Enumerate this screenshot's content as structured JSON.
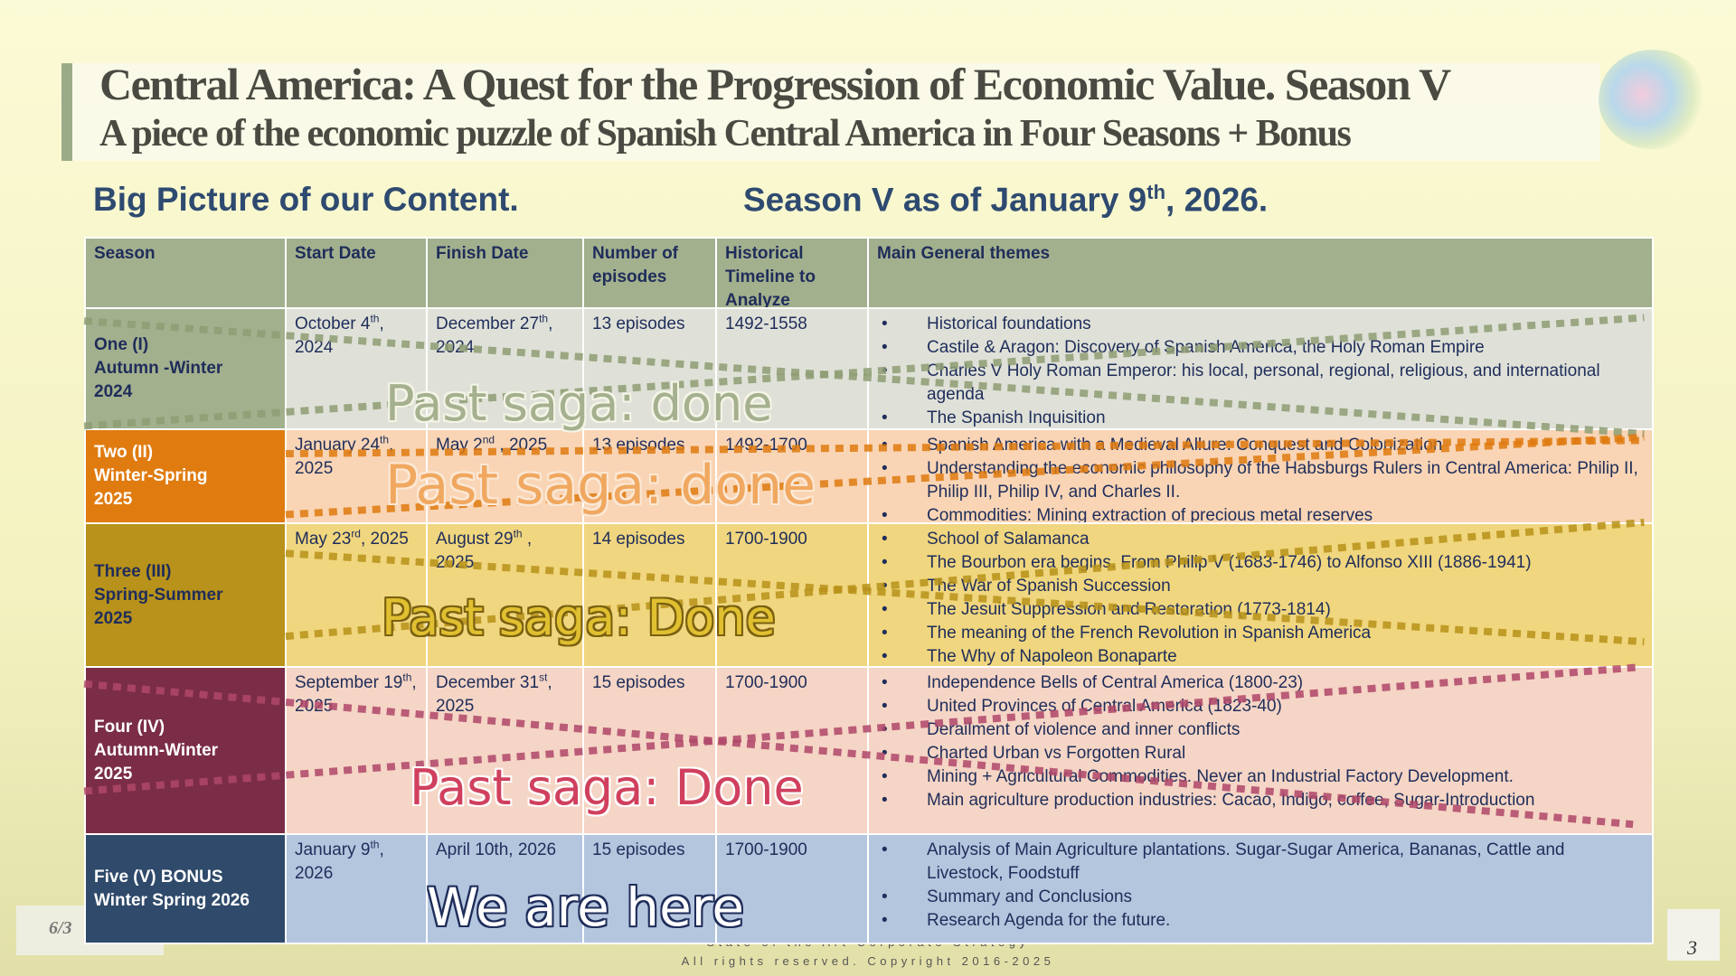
{
  "header": {
    "title": "Central America:  A Quest for the Progression of Economic Value. Season V",
    "subtitle": "A piece of the economic puzzle of Spanish Central America in Four Seasons + Bonus"
  },
  "headings": {
    "left": "Big Picture of our Content.",
    "right": [
      "Season V as of January 9",
      "th",
      ", 2026."
    ]
  },
  "table": {
    "columns": [
      "Season",
      "Start Date",
      "Finish Date",
      "Number of episodes",
      "Historical Timeline to Analyze",
      "Main General themes"
    ],
    "rows": [
      {
        "season": [
          "One  (I)",
          "Autumn -Winter",
          "2024"
        ],
        "start": [
          "October 4",
          "th",
          ", 2024"
        ],
        "finish": [
          "December 27",
          "th",
          ", 2024"
        ],
        "episodes": "13 episodes",
        "timeline": "1492-1558",
        "themes": [
          "Historical foundations",
          "Castile & Aragon: Discovery of Spanish America, the Holy Roman Empire",
          "Charles V Holy Roman Emperor: his local, personal, regional, religious, and international agenda",
          "The Spanish Inquisition"
        ],
        "overlay": "Past saga: done"
      },
      {
        "season": [
          "Two  (II)",
          "Winter-Spring",
          "2025"
        ],
        "start": [
          "January 24",
          "th",
          ", 2025"
        ],
        "finish": [
          "May 2",
          "nd",
          " , 2025"
        ],
        "episodes": "13 episodes",
        "timeline": "1492-1700",
        "themes": [
          "Spanish America with a Medieval Allure: Conquest and Colonization",
          "Understanding the economic philosophy of the Habsburgs Rulers in Central America: Philip II, Philip III, Philip IV, and Charles II.",
          "Commodities: Mining extraction of precious metal reserves"
        ],
        "overlay": "Past saga: done"
      },
      {
        "season": [
          "Three  (III)",
          "Spring-Summer",
          "2025"
        ],
        "start": [
          "May 23",
          "rd",
          ", 2025"
        ],
        "finish": [
          "August 29",
          "th",
          " , 2025"
        ],
        "episodes": "14 episodes",
        "timeline": "1700-1900",
        "themes": [
          "School of Salamanca",
          "The Bourbon era begins. From Philip V (1683-1746) to Alfonso XIII (1886-1941)",
          "The War of Spanish Succession",
          "The Jesuit Suppression and Restoration (1773-1814)",
          "The meaning of the French Revolution in Spanish America",
          "The Why of Napoleon Bonaparte"
        ],
        "overlay": "Past saga: Done"
      },
      {
        "season": [
          "Four (IV)",
          "Autumn-Winter",
          "2025"
        ],
        "start": [
          "September 19",
          "th",
          ", 2025"
        ],
        "finish": [
          "December 31",
          "st",
          ", 2025"
        ],
        "episodes": "15 episodes",
        "timeline": "1700-1900",
        "themes": [
          "Independence Bells of Central America (1800-23)",
          "United Provinces of Central America (1823-40)",
          "Derailment of violence and inner conflicts",
          "Charted Urban vs Forgotten Rural",
          "Mining + Agricultural Commodities. Never an Industrial Factory Development.",
          "Main agriculture production industries: Cacao, Indigo, coffee, Sugar-Introduction"
        ],
        "overlay": "Past saga: Done"
      },
      {
        "season": [
          "Five (V) BONUS",
          "Winter Spring 2026"
        ],
        "start": [
          "January 9",
          "th",
          ", 2026"
        ],
        "finish": [
          "April 10th, 2026"
        ],
        "episodes": "15 episodes",
        "timeline": "1700-1900",
        "themes": [
          "Analysis of Main Agriculture plantations. Sugar-Sugar America, Bananas, Cattle and Livestock, Foodstuff",
          "Summary and Conclusions",
          "Research Agenda for the future."
        ],
        "overlay": "We are here"
      }
    ]
  },
  "footer": {
    "left": "6/3",
    "line1": "State of the Art Corporate Strategy",
    "line2": "All rights reserved. Copyright 2016-2025",
    "page": "3"
  }
}
